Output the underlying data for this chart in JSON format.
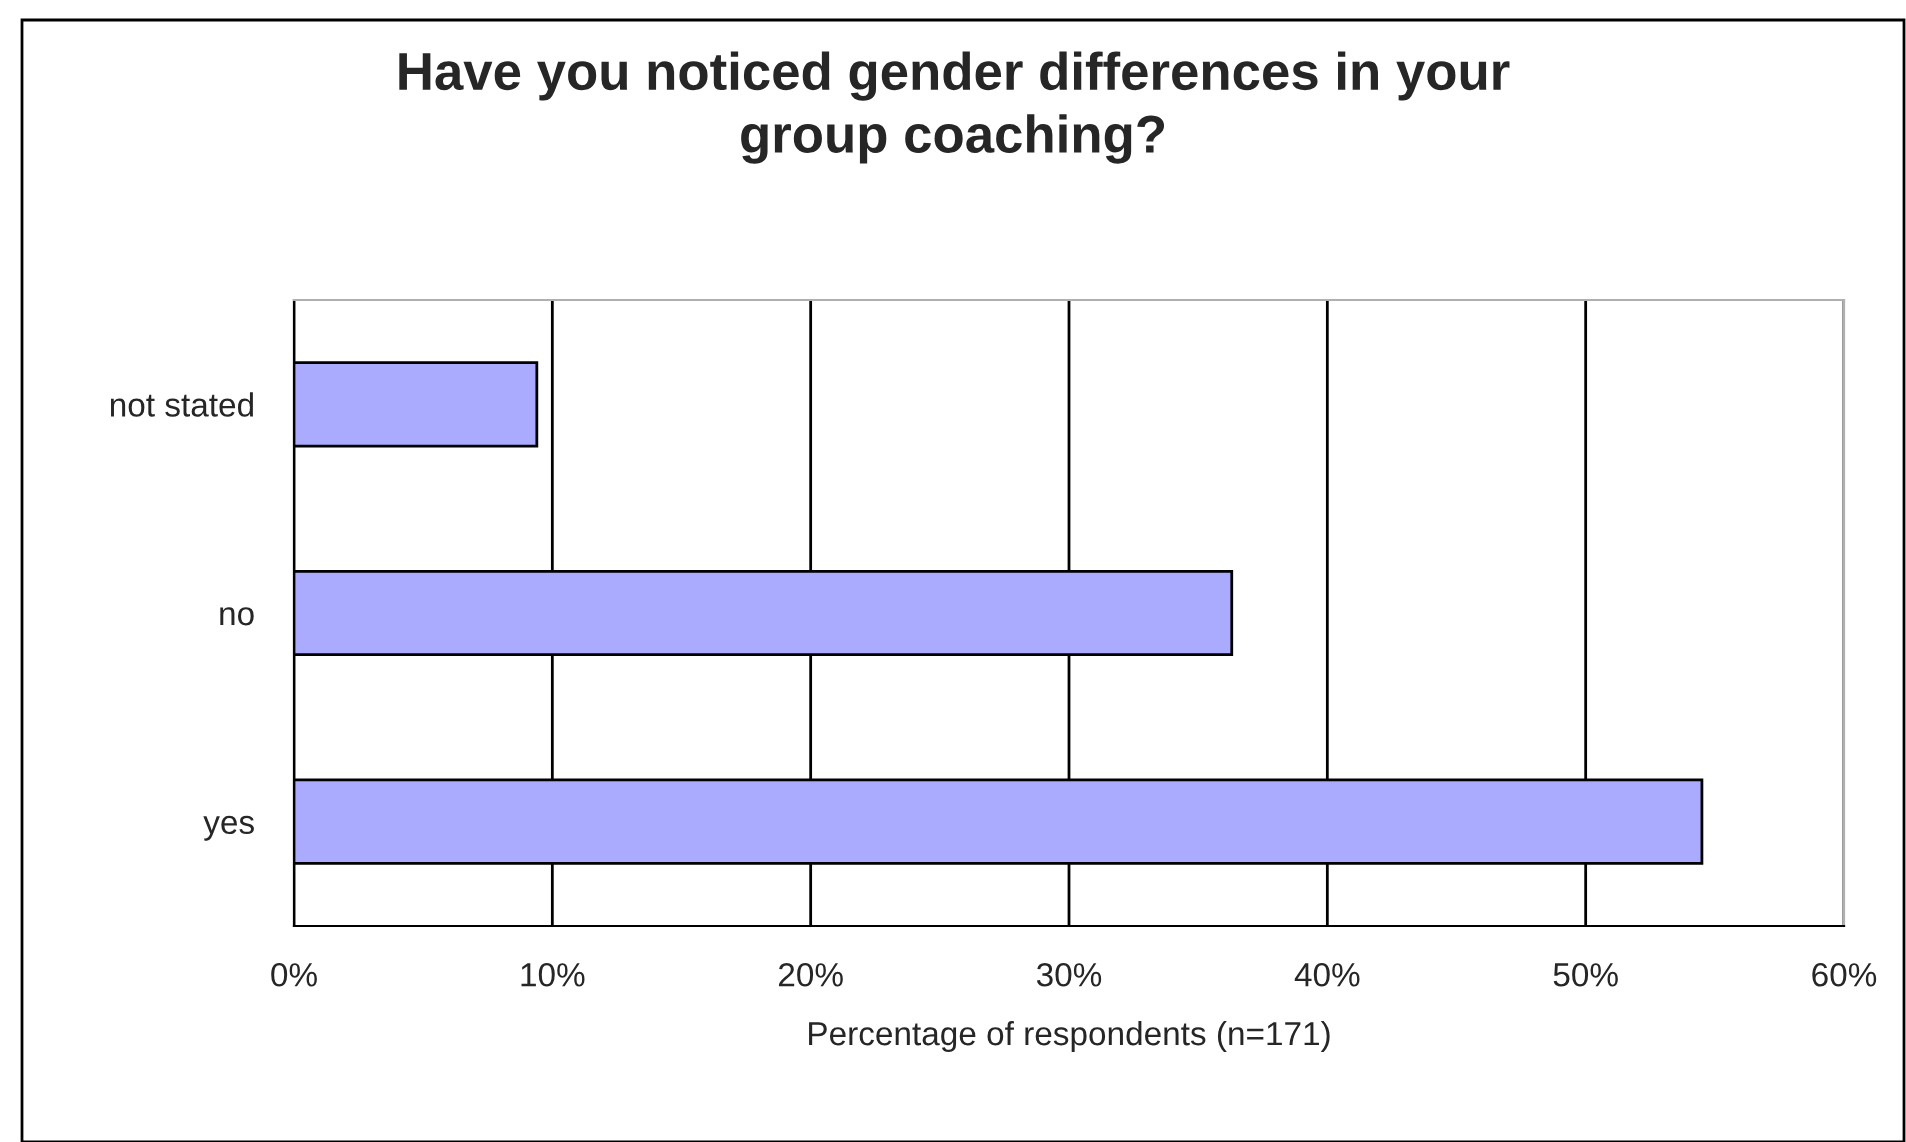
{
  "chart_data": {
    "type": "bar",
    "orientation": "horizontal",
    "title": "Have you noticed gender differences in your\ngroup coaching?",
    "xlabel": "Percentage of respondents (n=171)",
    "categories": [
      "not stated",
      "no",
      "yes"
    ],
    "values": [
      9.4,
      36.3,
      54.5
    ],
    "color": "#aaaaff",
    "xlim": [
      0,
      60
    ],
    "xticks": [
      {
        "value": 0,
        "label": "0%"
      },
      {
        "value": 10,
        "label": "10%"
      },
      {
        "value": 20,
        "label": "20%"
      },
      {
        "value": 30,
        "label": "30%"
      },
      {
        "value": 40,
        "label": "40%"
      },
      {
        "value": 50,
        "label": "50%"
      },
      {
        "value": 60,
        "label": "60%"
      }
    ],
    "grid": "x",
    "legend": false
  }
}
